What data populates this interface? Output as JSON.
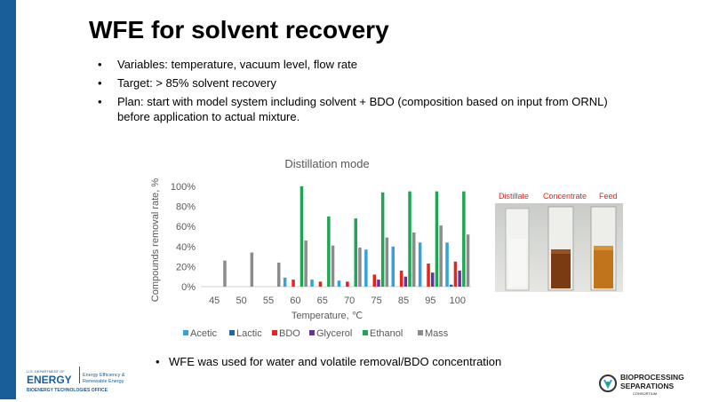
{
  "slide": {
    "title": "WFE for solvent recovery",
    "bullets": [
      "Variables: temperature, vacuum level, flow rate",
      "Target: > 85% solvent recovery",
      "Plan: start with model system including solvent + BDO (composition based on input from ORNL) before application to actual mixture."
    ],
    "bottom_bullet": "WFE was used for water and volatile removal/BDO concentration"
  },
  "photo": {
    "labels": [
      "Distillate",
      "Concentrate",
      "Feed"
    ],
    "label_color": "#e8221b"
  },
  "logos": {
    "doe": {
      "line1": "U.S. DEPARTMENT OF",
      "line2": "ENERGY",
      "office1": "Energy Efficiency &",
      "office2": "Renewable Energy",
      "sub": "BIOENERGY TECHNOLOGIES OFFICE"
    },
    "bsc": {
      "line1": "BIOPROCESSING",
      "line2": "SEPARATIONS",
      "line3": "CONSORTIUM"
    }
  },
  "colors": {
    "accent": "#1a5e99",
    "Acetic": "#33a3dc",
    "Lactic": "#1f62b3",
    "BDO": "#e8231f",
    "Glycerol": "#6a2fa0",
    "Ethanol": "#1fa653",
    "Mass": "#8c8c8c"
  },
  "chart_data": {
    "type": "bar",
    "title": "Distillation mode",
    "xlabel": "Temperature, ℃",
    "ylabel": "Compounds removal rate, %",
    "ylim": [
      0,
      100
    ],
    "yticks": [
      "0%",
      "20%",
      "40%",
      "60%",
      "80%",
      "100%"
    ],
    "categories": [
      "45",
      "50",
      "55",
      "60",
      "65",
      "70",
      "75",
      "85",
      "95",
      "100"
    ],
    "series": [
      {
        "name": "Acetic",
        "values": [
          0,
          0,
          0,
          9,
          7,
          6,
          37,
          40,
          44,
          44
        ]
      },
      {
        "name": "Lactic",
        "values": [
          0,
          0,
          0,
          0,
          0,
          0,
          0,
          0,
          0,
          2
        ]
      },
      {
        "name": "BDO",
        "values": [
          0,
          0,
          0,
          7,
          5,
          5,
          12,
          16,
          23,
          25
        ]
      },
      {
        "name": "Glycerol",
        "values": [
          0,
          0,
          0,
          0,
          0,
          0,
          7,
          10,
          14,
          16
        ]
      },
      {
        "name": "Ethanol",
        "values": [
          0,
          0,
          0,
          100,
          70,
          68,
          94,
          95,
          95,
          95
        ]
      },
      {
        "name": "Mass",
        "values": [
          26,
          34,
          24,
          46,
          41,
          39,
          49,
          54,
          61,
          52
        ]
      }
    ],
    "legend_position": "bottom",
    "grid": false
  }
}
